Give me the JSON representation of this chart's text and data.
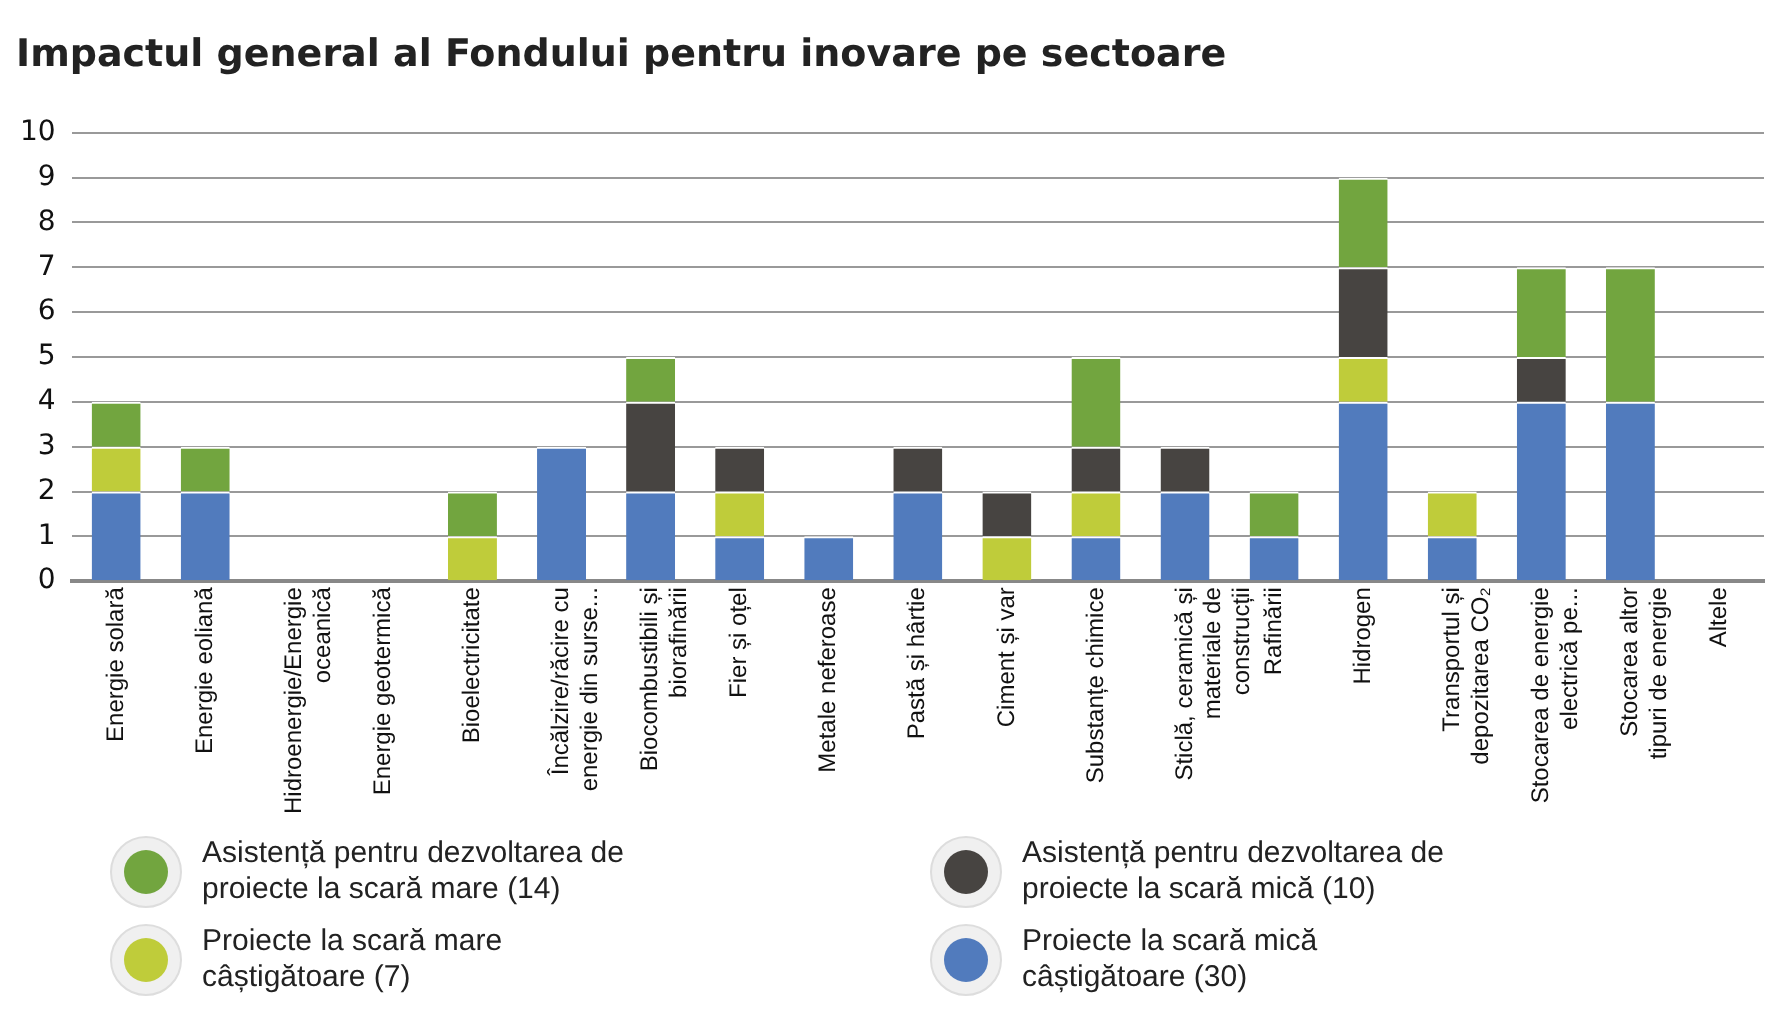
{
  "chart_data": {
    "type": "bar",
    "title": "Impactul general al Fondului pentru inovare pe sectoare",
    "stacked": true,
    "grid": "y",
    "legend": "bottom",
    "categories": [
      "Energie solară",
      "Energie eoliană",
      "Hidroenergie/Energie oceanică",
      "Energie geotermică",
      "Bioelectricitate",
      "Încălzire/răcire cu energie din surse...",
      "Biocombustibili și biorafinării",
      "Fier și oțel",
      "Metale neferoase",
      "Pastă și hârtie",
      "Ciment și var",
      "Substanțe chimice",
      "Sticlă, ceramică și materiale de construcții",
      "Rafinării",
      "Hidrogen",
      "Transportul și depozitarea CO₂",
      "Stocarea de energie electrică pe...",
      "Stocarea altor tipuri de energie",
      "Altele"
    ],
    "series": [
      {
        "name": "Proiecte la scară mică câștigătoare (30)",
        "color": "#517bbd",
        "values": [
          2,
          2,
          0,
          0,
          0,
          3,
          2,
          1,
          1,
          2,
          0,
          1,
          2,
          1,
          4,
          1,
          4,
          4,
          0
        ]
      },
      {
        "name": "Proiecte la scară mare câștigătoare (7)",
        "color": "#bfcc3a",
        "values": [
          1,
          0,
          0,
          0,
          1,
          0,
          0,
          1,
          0,
          0,
          1,
          1,
          0,
          0,
          1,
          1,
          0,
          0,
          0
        ]
      },
      {
        "name": "Asistență pentru dezvoltarea de proiecte la scară mică (10)",
        "color": "#474441",
        "values": [
          0,
          0,
          0,
          0,
          0,
          0,
          2,
          1,
          0,
          1,
          1,
          1,
          1,
          0,
          2,
          0,
          1,
          0,
          0
        ]
      },
      {
        "name": "Asistență pentru dezvoltarea de proiecte la scară mare (14)",
        "color": "#72a53f",
        "values": [
          1,
          1,
          0,
          0,
          1,
          0,
          1,
          0,
          0,
          0,
          0,
          2,
          0,
          1,
          2,
          0,
          2,
          3,
          0
        ]
      }
    ],
    "ylim": [
      0,
      10
    ],
    "yticks": [
      0,
      1,
      2,
      3,
      4,
      5,
      6,
      7,
      8,
      9,
      10
    ]
  }
}
